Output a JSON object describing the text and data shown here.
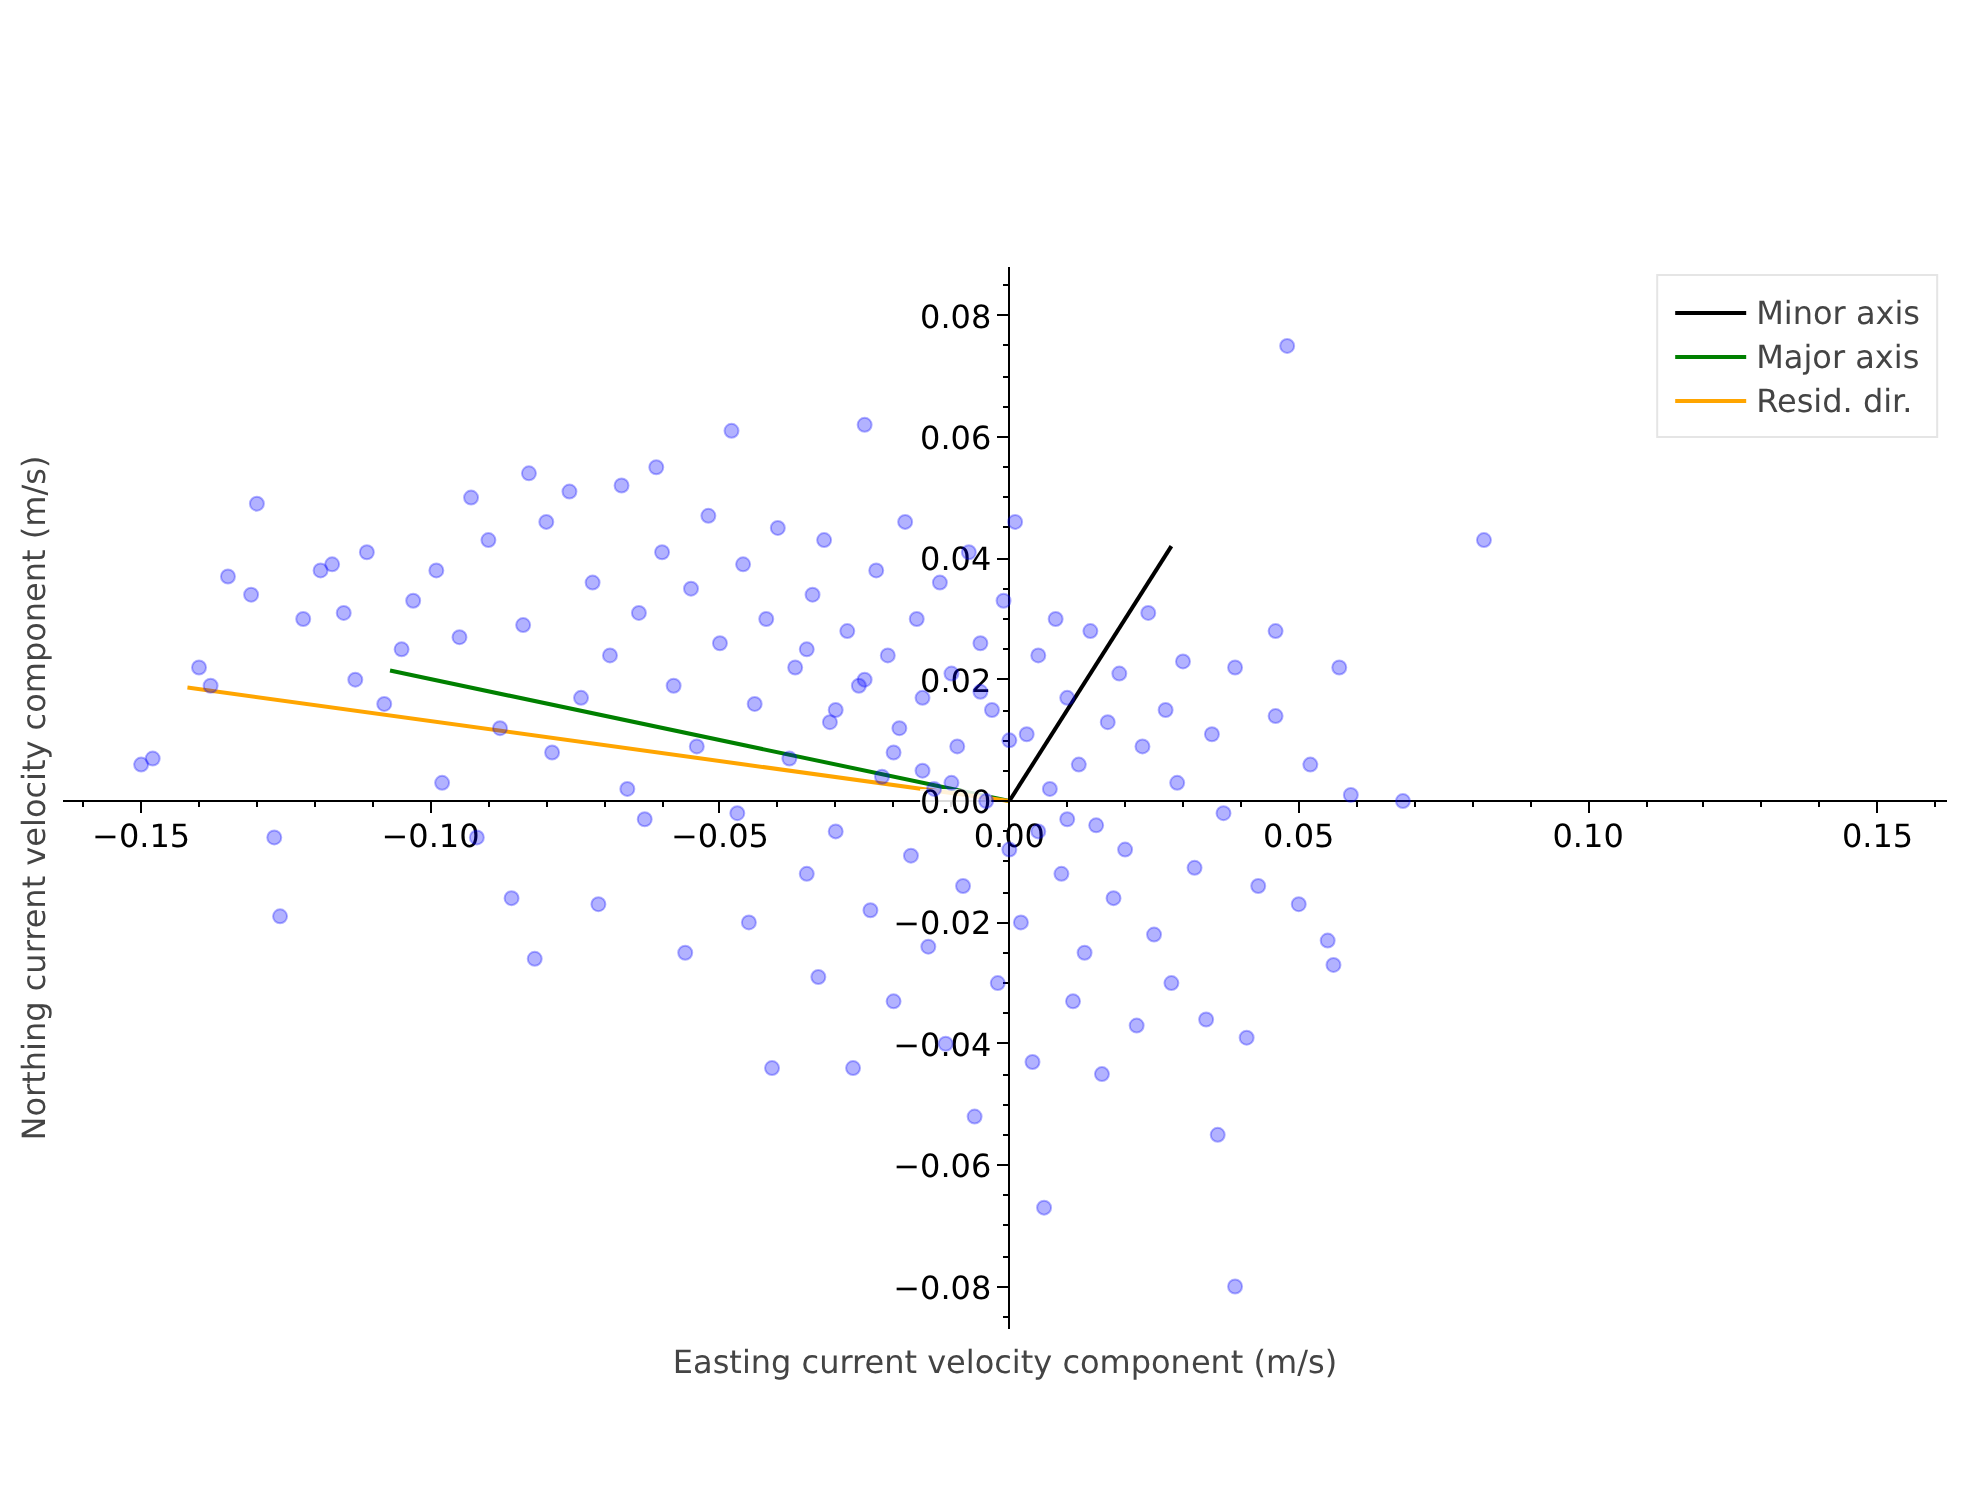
{
  "chart_data": {
    "type": "scatter",
    "xlabel": "Easting current velocity component (m/s)",
    "ylabel": "Northing current velocity component (m/s)",
    "xlim": [
      -0.1635,
      0.162
    ],
    "ylim": [
      -0.087,
      0.088
    ],
    "xticks": [
      {
        "value": -0.15,
        "label": "−0.15"
      },
      {
        "value": -0.1,
        "label": "−0.10"
      },
      {
        "value": -0.05,
        "label": "−0.05"
      },
      {
        "value": 0,
        "label": "0.00"
      },
      {
        "value": 0.05,
        "label": "0.05"
      },
      {
        "value": 0.1,
        "label": "0.10"
      },
      {
        "value": 0.15,
        "label": "0.15"
      }
    ],
    "yticks": [
      {
        "value": -0.08,
        "label": "−0.08"
      },
      {
        "value": -0.06,
        "label": "−0.06"
      },
      {
        "value": -0.04,
        "label": "−0.04"
      },
      {
        "value": -0.02,
        "label": "−0.02"
      },
      {
        "value": 0,
        "label": "0.00"
      },
      {
        "value": 0.02,
        "label": "0.02"
      },
      {
        "value": 0.04,
        "label": "0.04"
      },
      {
        "value": 0.06,
        "label": "0.06"
      },
      {
        "value": 0.08,
        "label": "0.08"
      }
    ],
    "grid": false,
    "legend": "top right",
    "series": [
      {
        "marker": "circle",
        "color": "#0000ff",
        "x": [
          -0.15,
          -0.148,
          -0.14,
          -0.138,
          -0.135,
          -0.13,
          -0.131,
          -0.126,
          -0.127,
          -0.122,
          -0.119,
          -0.117,
          -0.115,
          -0.113,
          -0.111,
          -0.108,
          -0.105,
          -0.103,
          -0.099,
          -0.098,
          -0.095,
          -0.093,
          -0.092,
          -0.09,
          -0.088,
          -0.086,
          -0.084,
          -0.083,
          -0.082,
          -0.08,
          -0.079,
          -0.076,
          -0.074,
          -0.072,
          -0.071,
          -0.069,
          -0.067,
          -0.066,
          -0.064,
          -0.063,
          -0.061,
          -0.06,
          -0.058,
          -0.056,
          -0.055,
          -0.054,
          -0.052,
          -0.05,
          -0.048,
          -0.047,
          -0.046,
          -0.045,
          -0.044,
          -0.042,
          -0.041,
          -0.04,
          -0.038,
          -0.037,
          -0.035,
          -0.034,
          -0.033,
          -0.032,
          -0.031,
          -0.03,
          -0.028,
          -0.027,
          -0.026,
          -0.025,
          -0.024,
          -0.023,
          -0.022,
          -0.021,
          -0.02,
          -0.019,
          -0.018,
          -0.017,
          -0.016,
          -0.015,
          -0.014,
          -0.013,
          -0.012,
          -0.011,
          -0.01,
          -0.009,
          -0.008,
          -0.007,
          -0.006,
          -0.005,
          -0.004,
          -0.003,
          -0.002,
          -0.001,
          0.0,
          0.001,
          0.002,
          0.003,
          0.004,
          0.005,
          0.006,
          0.007,
          0.008,
          0.009,
          0.01,
          0.011,
          0.012,
          0.013,
          0.014,
          0.015,
          0.016,
          0.017,
          0.018,
          0.019,
          0.02,
          0.022,
          0.023,
          0.024,
          0.025,
          0.027,
          0.028,
          0.029,
          0.03,
          0.032,
          0.034,
          0.035,
          0.036,
          0.037,
          0.039,
          0.039,
          0.041,
          0.043,
          0.046,
          0.046,
          0.048,
          0.05,
          0.052,
          0.055,
          0.056,
          0.057,
          0.059,
          0.068,
          0.082,
          -0.03,
          -0.02,
          -0.01,
          0.0,
          0.005,
          -0.015,
          -0.025,
          0.01,
          -0.035,
          -0.005
        ],
        "values": [
          0.006,
          0.007,
          0.022,
          0.019,
          0.037,
          0.049,
          0.034,
          -0.019,
          -0.006,
          0.03,
          0.038,
          0.039,
          0.031,
          0.02,
          0.041,
          0.016,
          0.025,
          0.033,
          0.038,
          0.003,
          0.027,
          0.05,
          -0.006,
          0.043,
          0.012,
          -0.016,
          0.029,
          0.054,
          -0.026,
          0.046,
          0.008,
          0.051,
          0.017,
          0.036,
          -0.017,
          0.024,
          0.052,
          0.002,
          0.031,
          -0.003,
          0.055,
          0.041,
          0.019,
          -0.025,
          0.035,
          0.009,
          0.047,
          0.026,
          0.061,
          -0.002,
          0.039,
          -0.02,
          0.016,
          0.03,
          -0.044,
          0.045,
          0.007,
          0.022,
          -0.012,
          0.034,
          -0.029,
          0.043,
          0.013,
          -0.005,
          0.028,
          -0.044,
          0.019,
          0.062,
          -0.018,
          0.038,
          0.004,
          0.024,
          -0.033,
          0.012,
          0.046,
          -0.009,
          0.03,
          0.017,
          -0.024,
          0.002,
          0.036,
          -0.04,
          0.021,
          0.009,
          -0.014,
          0.041,
          -0.052,
          0.026,
          0.0,
          0.015,
          -0.03,
          0.033,
          -0.008,
          0.046,
          -0.02,
          0.011,
          -0.043,
          0.024,
          -0.067,
          0.002,
          0.03,
          -0.012,
          0.017,
          -0.033,
          0.006,
          -0.025,
          0.028,
          -0.004,
          -0.045,
          0.013,
          -0.016,
          0.021,
          -0.008,
          -0.037,
          0.009,
          0.031,
          -0.022,
          0.015,
          -0.03,
          0.003,
          0.023,
          -0.011,
          -0.036,
          0.011,
          -0.055,
          -0.002,
          -0.08,
          0.022,
          -0.039,
          -0.014,
          0.028,
          0.014,
          0.075,
          -0.017,
          0.006,
          -0.023,
          -0.027,
          0.022,
          0.001,
          0.0,
          0.043,
          0.015,
          0.008,
          0.003,
          0.01,
          -0.005,
          0.005,
          0.02,
          -0.003,
          0.025,
          0.018
        ]
      },
      {
        "type": "line",
        "name": "Minor axis",
        "color": "#000000",
        "x": [
          0,
          0.028
        ],
        "values": [
          0,
          0.042
        ]
      },
      {
        "type": "line",
        "name": "Major axis",
        "color": "#008000",
        "x": [
          -0.107,
          0
        ],
        "values": [
          0.0215,
          0
        ]
      },
      {
        "type": "line",
        "name": "Resid. dir.",
        "color": "#ffa500",
        "x": [
          -0.142,
          0
        ],
        "values": [
          0.0187,
          0
        ]
      }
    ]
  }
}
